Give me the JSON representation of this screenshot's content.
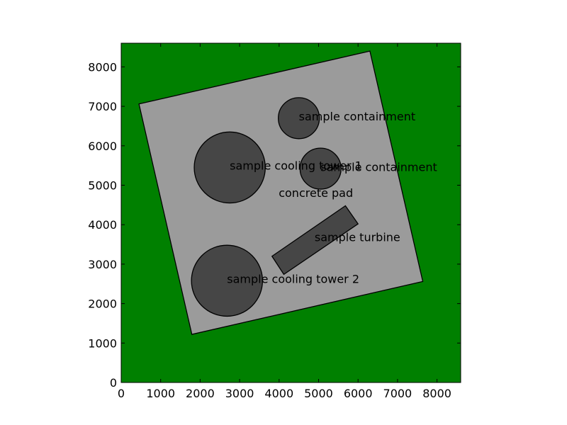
{
  "chart_data": {
    "type": "site-layout",
    "title": "",
    "xlabel": "",
    "ylabel": "",
    "xlim": [
      0,
      8600
    ],
    "ylim": [
      0,
      8600
    ],
    "xticks": [
      0,
      1000,
      2000,
      3000,
      4000,
      5000,
      6000,
      7000,
      8000
    ],
    "yticks": [
      0,
      1000,
      2000,
      3000,
      4000,
      5000,
      6000,
      7000,
      8000
    ],
    "colors": {
      "ground": "#008000",
      "pad": "#9b9b9b",
      "structure": "#464646",
      "outline": "#000000"
    },
    "pad": {
      "label": "concrete pad",
      "label_at": [
        3990,
        4810
      ],
      "corners": [
        [
          450,
          7060
        ],
        [
          6300,
          8400
        ],
        [
          7640,
          2560
        ],
        [
          1790,
          1220
        ]
      ]
    },
    "structures": [
      {
        "shape": "circle",
        "label": "sample containment",
        "center": [
          4500,
          6700
        ],
        "radius": 520,
        "label_at": [
          4500,
          6750
        ]
      },
      {
        "shape": "circle",
        "label": "sample cooling tower 1",
        "center": [
          2750,
          5450
        ],
        "radius": 900,
        "label_at": [
          2750,
          5500
        ]
      },
      {
        "shape": "circle",
        "label": "sample containment",
        "center": [
          5050,
          5420
        ],
        "radius": 520,
        "label_at": [
          5050,
          5470
        ]
      },
      {
        "shape": "circle",
        "label": "sample cooling tower 2",
        "center": [
          2680,
          2580
        ],
        "radius": 900,
        "label_at": [
          2680,
          2630
        ]
      },
      {
        "shape": "polygon",
        "label": "sample turbine",
        "corners": [
          [
            3820,
            3200
          ],
          [
            5680,
            4480
          ],
          [
            6000,
            4020
          ],
          [
            4120,
            2740
          ]
        ],
        "label_at": [
          4900,
          3690
        ]
      }
    ]
  }
}
